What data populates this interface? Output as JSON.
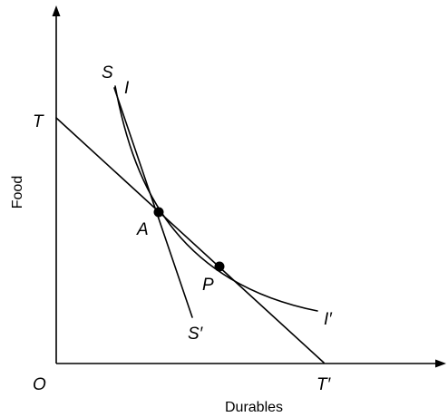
{
  "axes": {
    "x_title": "Durables",
    "y_title": "Food",
    "origin_label": "O"
  },
  "labels": {
    "T": "T",
    "T_prime": "T′",
    "S": "S",
    "S_prime": "S′",
    "I": "I",
    "I_prime": "I′",
    "A": "A",
    "P": "P"
  },
  "colors": {
    "ink": "#000000",
    "background": "#ffffff"
  }
}
